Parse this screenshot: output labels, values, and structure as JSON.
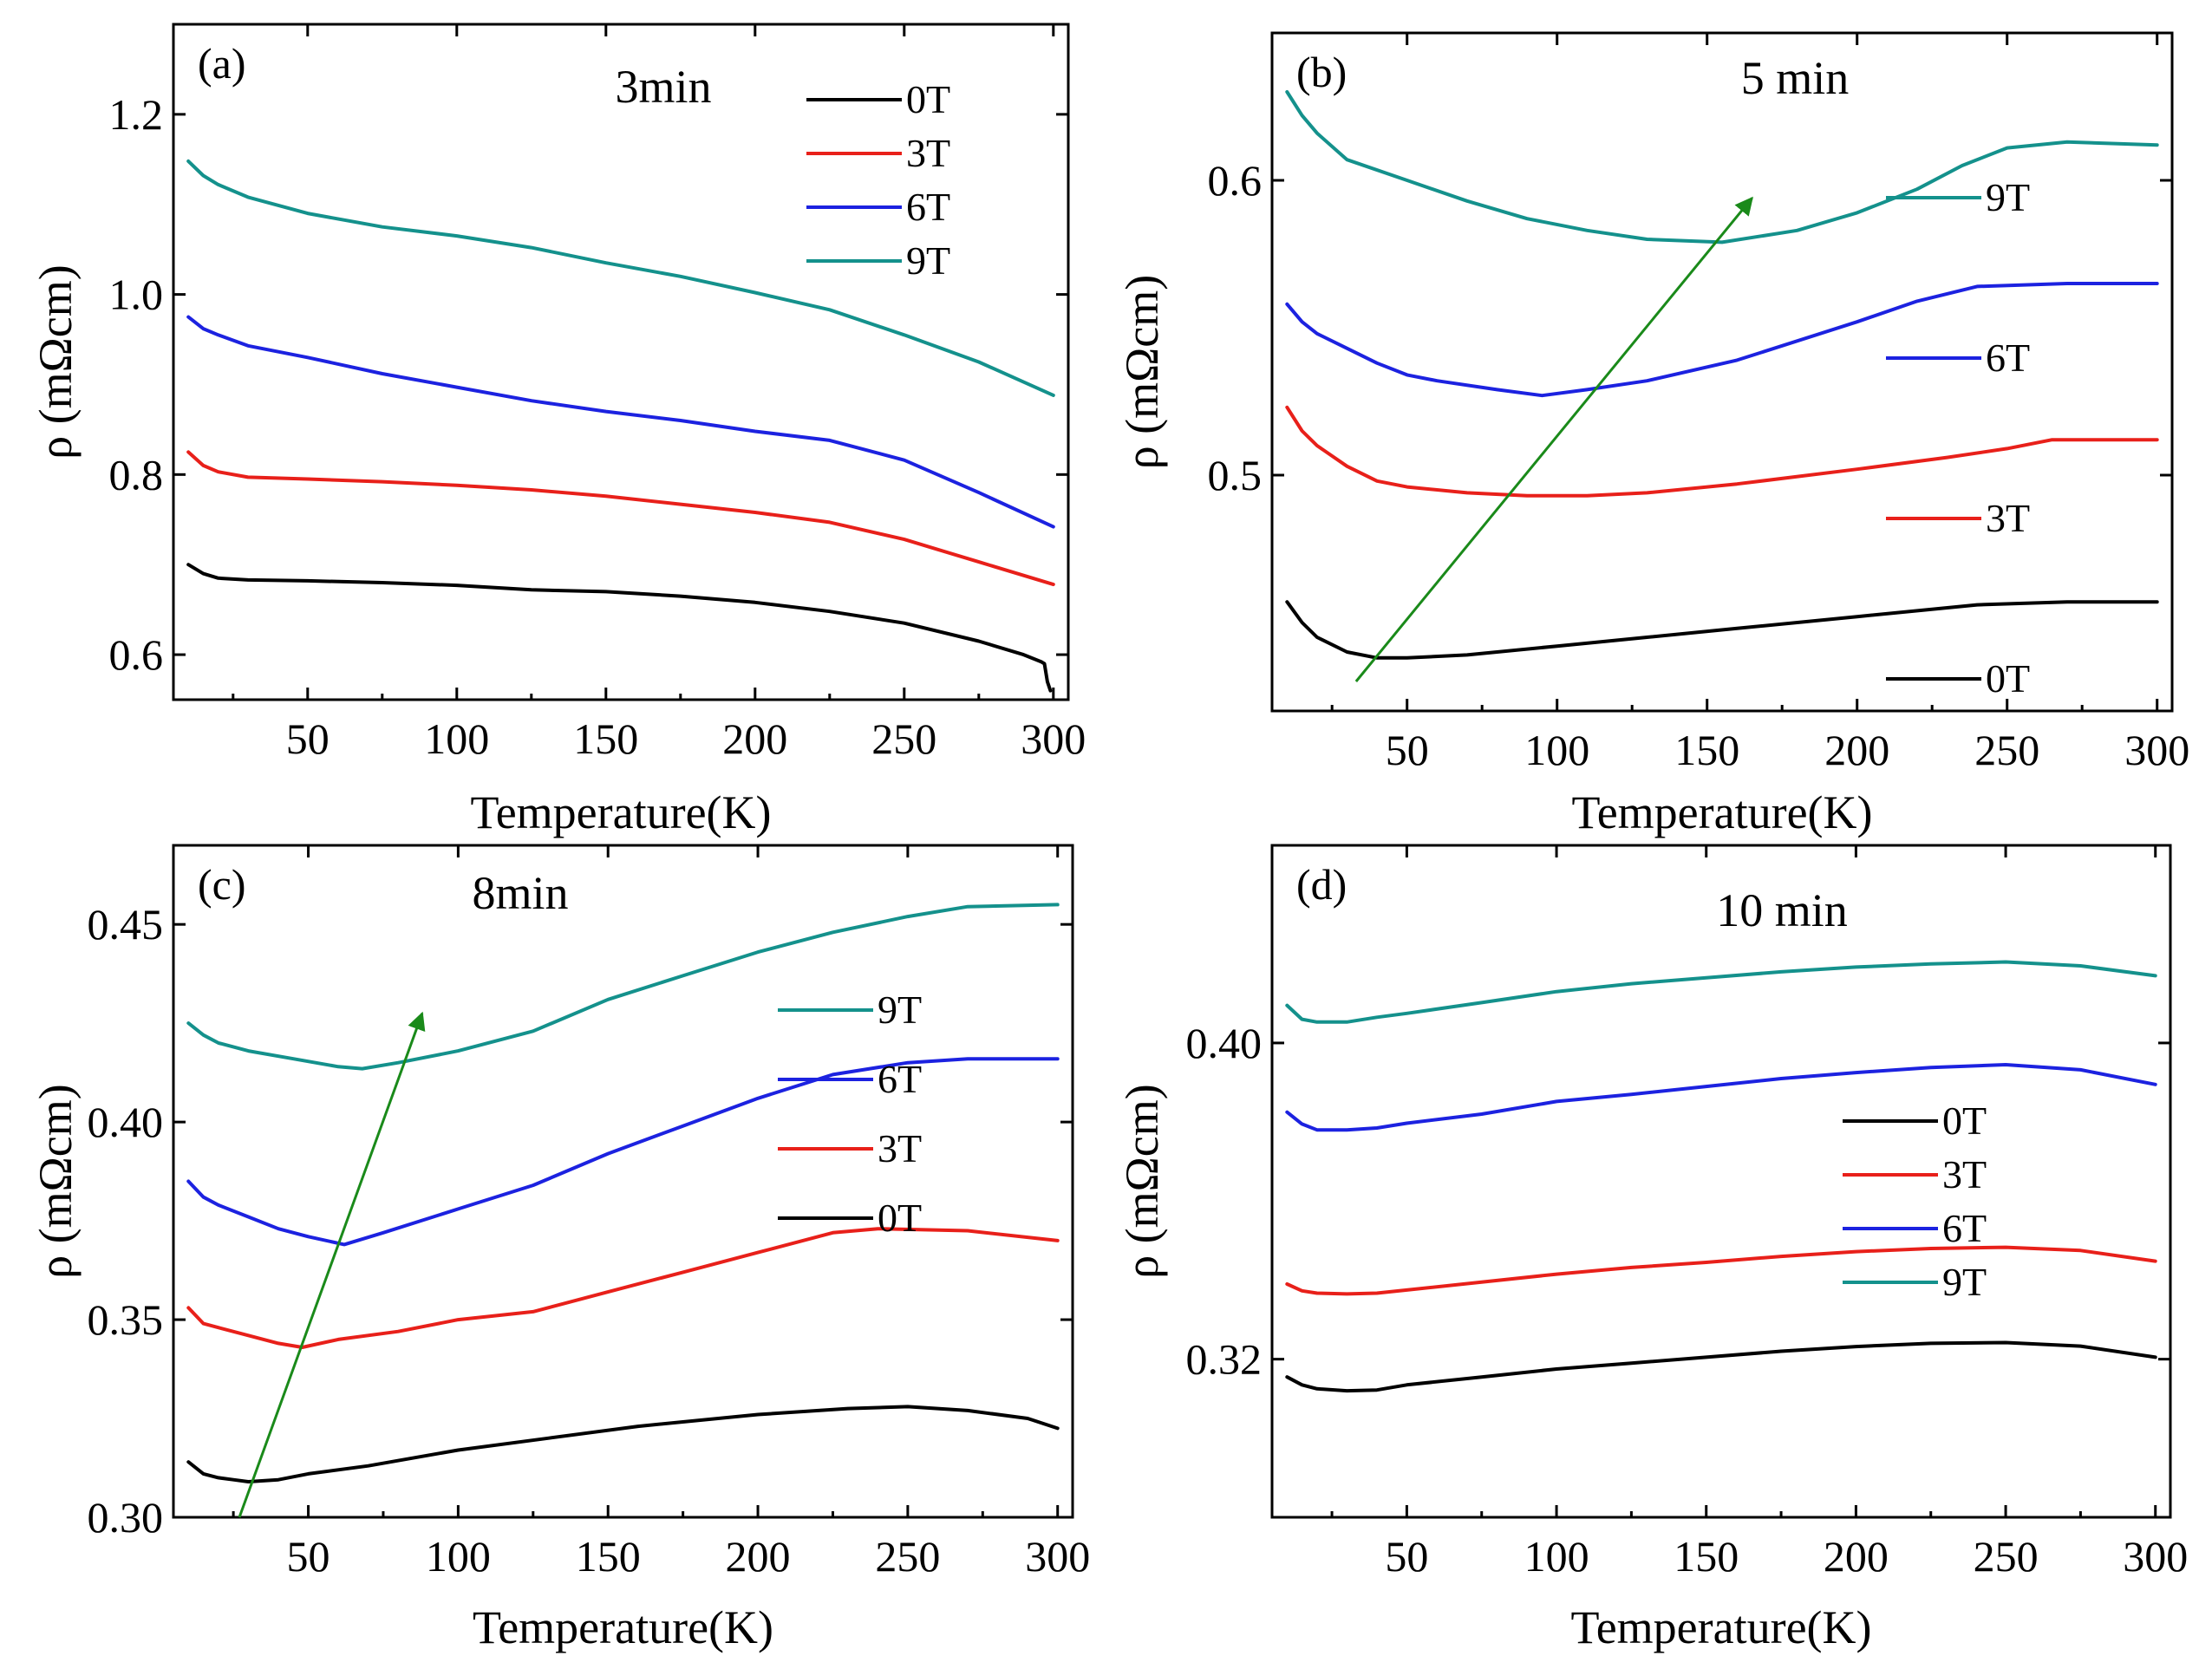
{
  "chart_data": [
    {
      "type": "line",
      "label": "(a)",
      "title": "3min",
      "xlabel": "Temperature(K)",
      "ylabel": "ρ (mΩcm)",
      "xlim": [
        5,
        305
      ],
      "ylim": [
        0.55,
        1.3
      ],
      "xticks": [
        50,
        100,
        150,
        200,
        250,
        300
      ],
      "yticks": [
        0.6,
        0.8,
        1.0,
        1.2
      ],
      "ytick_labels": [
        "0.6",
        "0.8",
        "1.0",
        "1.2"
      ],
      "legend_order": [
        "0T",
        "3T",
        "6T",
        "9T"
      ],
      "series": [
        {
          "name": "0T",
          "color": "#000000",
          "x": [
            10,
            15,
            20,
            30,
            50,
            75,
            100,
            125,
            150,
            175,
            200,
            225,
            250,
            275,
            290,
            296,
            297,
            298,
            299
          ],
          "y": [
            0.7,
            0.69,
            0.685,
            0.683,
            0.682,
            0.68,
            0.677,
            0.672,
            0.67,
            0.665,
            0.658,
            0.648,
            0.635,
            0.615,
            0.6,
            0.592,
            0.59,
            0.57,
            0.56
          ]
        },
        {
          "name": "3T",
          "color": "#e8201a",
          "x": [
            10,
            15,
            20,
            30,
            50,
            75,
            100,
            125,
            150,
            175,
            200,
            225,
            250,
            275,
            300
          ],
          "y": [
            0.825,
            0.81,
            0.803,
            0.797,
            0.795,
            0.792,
            0.788,
            0.783,
            0.776,
            0.767,
            0.758,
            0.747,
            0.728,
            0.703,
            0.678
          ]
        },
        {
          "name": "6T",
          "color": "#1c22e0",
          "x": [
            10,
            15,
            20,
            30,
            50,
            75,
            100,
            125,
            150,
            175,
            200,
            225,
            250,
            275,
            300
          ],
          "y": [
            0.975,
            0.962,
            0.955,
            0.943,
            0.93,
            0.912,
            0.897,
            0.882,
            0.87,
            0.86,
            0.848,
            0.838,
            0.816,
            0.78,
            0.742
          ]
        },
        {
          "name": "9T",
          "color": "#14918c",
          "x": [
            10,
            15,
            20,
            30,
            50,
            75,
            100,
            125,
            150,
            175,
            200,
            225,
            250,
            275,
            300
          ],
          "y": [
            1.148,
            1.132,
            1.122,
            1.108,
            1.09,
            1.075,
            1.065,
            1.052,
            1.035,
            1.02,
            1.002,
            0.983,
            0.955,
            0.925,
            0.888
          ]
        }
      ]
    },
    {
      "type": "line",
      "label": "(b)",
      "title": "5 min",
      "xlabel": "Temperature(K)",
      "ylabel": "ρ (mΩcm)",
      "xlim": [
        5,
        305
      ],
      "ylim": [
        0.42,
        0.65
      ],
      "xticks": [
        50,
        100,
        150,
        200,
        250,
        300
      ],
      "yticks": [
        0.5,
        0.6
      ],
      "ytick_labels": [
        "0.5",
        "0.6"
      ],
      "legend_order": [
        "9T",
        "6T",
        "3T",
        "0T"
      ],
      "arrow": {
        "from": [
          33,
          0.43
        ],
        "to": [
          165,
          0.594
        ]
      },
      "series": [
        {
          "name": "0T",
          "color": "#000000",
          "x": [
            10,
            15,
            20,
            30,
            40,
            50,
            70,
            100,
            130,
            160,
            200,
            240,
            270,
            300
          ],
          "y": [
            0.457,
            0.45,
            0.445,
            0.44,
            0.438,
            0.438,
            0.439,
            0.442,
            0.445,
            0.448,
            0.452,
            0.456,
            0.457,
            0.457
          ]
        },
        {
          "name": "3T",
          "color": "#e8201a",
          "x": [
            10,
            15,
            20,
            30,
            40,
            50,
            70,
            90,
            110,
            130,
            160,
            200,
            230,
            250,
            265,
            300
          ],
          "y": [
            0.523,
            0.515,
            0.51,
            0.503,
            0.498,
            0.496,
            0.494,
            0.493,
            0.493,
            0.494,
            0.497,
            0.502,
            0.506,
            0.509,
            0.512,
            0.512
          ]
        },
        {
          "name": "6T",
          "color": "#1c22e0",
          "x": [
            10,
            15,
            20,
            30,
            40,
            50,
            60,
            80,
            95,
            110,
            130,
            160,
            200,
            220,
            240,
            270,
            300
          ],
          "y": [
            0.558,
            0.552,
            0.548,
            0.543,
            0.538,
            0.534,
            0.532,
            0.529,
            0.527,
            0.529,
            0.532,
            0.539,
            0.552,
            0.559,
            0.564,
            0.565,
            0.565
          ]
        },
        {
          "name": "9T",
          "color": "#14918c",
          "x": [
            10,
            15,
            20,
            30,
            50,
            70,
            90,
            110,
            130,
            155,
            180,
            200,
            220,
            235,
            250,
            270,
            300
          ],
          "y": [
            0.63,
            0.622,
            0.616,
            0.607,
            0.6,
            0.593,
            0.587,
            0.583,
            0.58,
            0.579,
            0.583,
            0.589,
            0.597,
            0.605,
            0.611,
            0.613,
            0.612
          ]
        }
      ]
    },
    {
      "type": "line",
      "label": "(c)",
      "title": "8min",
      "xlabel": "Temperature(K)",
      "ylabel": "ρ (mΩcm)",
      "xlim": [
        5,
        305
      ],
      "ylim": [
        0.3,
        0.47
      ],
      "xticks": [
        50,
        100,
        150,
        200,
        250,
        300
      ],
      "yticks": [
        0.3,
        0.35,
        0.4,
        0.45
      ],
      "ytick_labels": [
        "0.30",
        "0.35",
        "0.40",
        "0.45"
      ],
      "legend_order": [
        "9T",
        "6T",
        "3T",
        "0T"
      ],
      "arrow": {
        "from": [
          27,
          0.3
        ],
        "to": [
          88,
          0.4275
        ]
      },
      "series": [
        {
          "name": "0T",
          "color": "#000000",
          "x": [
            10,
            15,
            20,
            25,
            30,
            40,
            50,
            70,
            100,
            130,
            160,
            200,
            230,
            250,
            270,
            290,
            300
          ],
          "y": [
            0.314,
            0.311,
            0.31,
            0.3095,
            0.309,
            0.3095,
            0.311,
            0.313,
            0.317,
            0.32,
            0.323,
            0.326,
            0.3275,
            0.328,
            0.327,
            0.325,
            0.3225
          ]
        },
        {
          "name": "3T",
          "color": "#e8201a",
          "x": [
            10,
            15,
            20,
            30,
            40,
            48,
            60,
            80,
            100,
            125,
            150,
            175,
            200,
            225,
            240,
            270,
            300
          ],
          "y": [
            0.353,
            0.349,
            0.348,
            0.346,
            0.344,
            0.343,
            0.345,
            0.347,
            0.35,
            0.352,
            0.357,
            0.362,
            0.367,
            0.372,
            0.373,
            0.3725,
            0.37
          ]
        },
        {
          "name": "6T",
          "color": "#1c22e0",
          "x": [
            10,
            15,
            20,
            30,
            40,
            50,
            62,
            75,
            100,
            125,
            150,
            175,
            200,
            225,
            250,
            270,
            300
          ],
          "y": [
            0.385,
            0.381,
            0.379,
            0.376,
            0.373,
            0.371,
            0.369,
            0.372,
            0.378,
            0.384,
            0.392,
            0.399,
            0.406,
            0.412,
            0.415,
            0.416,
            0.416
          ]
        },
        {
          "name": "9T",
          "color": "#14918c",
          "x": [
            10,
            15,
            20,
            30,
            45,
            60,
            68,
            80,
            100,
            125,
            150,
            175,
            200,
            225,
            250,
            270,
            300
          ],
          "y": [
            0.425,
            0.422,
            0.42,
            0.418,
            0.416,
            0.414,
            0.4135,
            0.415,
            0.418,
            0.423,
            0.431,
            0.437,
            0.443,
            0.448,
            0.452,
            0.4545,
            0.455
          ]
        }
      ]
    },
    {
      "type": "line",
      "label": "(d)",
      "title": "10 min",
      "xlabel": "Temperature(K)",
      "ylabel": "ρ (mΩcm)",
      "xlim": [
        5,
        305
      ],
      "ylim": [
        0.28,
        0.45
      ],
      "xticks": [
        50,
        100,
        150,
        200,
        250,
        300
      ],
      "yticks": [
        0.32,
        0.4
      ],
      "ytick_labels": [
        "0.32",
        "0.40"
      ],
      "legend_order": [
        "0T",
        "3T",
        "6T",
        "9T"
      ],
      "series": [
        {
          "name": "0T",
          "color": "#000000",
          "x": [
            10,
            15,
            20,
            30,
            40,
            50,
            75,
            100,
            125,
            150,
            175,
            200,
            225,
            250,
            275,
            300
          ],
          "y": [
            0.3155,
            0.3135,
            0.3125,
            0.312,
            0.3122,
            0.3135,
            0.3155,
            0.3175,
            0.319,
            0.3205,
            0.322,
            0.3232,
            0.324,
            0.3242,
            0.3233,
            0.3205
          ]
        },
        {
          "name": "3T",
          "color": "#e8201a",
          "x": [
            10,
            15,
            20,
            30,
            40,
            50,
            75,
            100,
            125,
            150,
            175,
            200,
            225,
            250,
            275,
            300
          ],
          "y": [
            0.339,
            0.3373,
            0.3367,
            0.3365,
            0.3367,
            0.3375,
            0.3395,
            0.3415,
            0.3432,
            0.3445,
            0.346,
            0.3472,
            0.348,
            0.3483,
            0.3475,
            0.3448
          ]
        },
        {
          "name": "6T",
          "color": "#1c22e0",
          "x": [
            10,
            15,
            20,
            30,
            40,
            50,
            75,
            100,
            125,
            150,
            175,
            200,
            225,
            250,
            275,
            300
          ],
          "y": [
            0.3825,
            0.3795,
            0.378,
            0.378,
            0.3785,
            0.3797,
            0.382,
            0.3852,
            0.387,
            0.389,
            0.391,
            0.3925,
            0.3938,
            0.3945,
            0.3932,
            0.3895
          ]
        },
        {
          "name": "9T",
          "color": "#14918c",
          "x": [
            10,
            15,
            20,
            30,
            40,
            50,
            75,
            100,
            125,
            150,
            175,
            200,
            225,
            250,
            275,
            300
          ],
          "y": [
            0.4095,
            0.406,
            0.4053,
            0.4053,
            0.4065,
            0.4075,
            0.4102,
            0.413,
            0.415,
            0.4165,
            0.418,
            0.4192,
            0.42,
            0.4205,
            0.4195,
            0.417
          ]
        }
      ]
    }
  ]
}
